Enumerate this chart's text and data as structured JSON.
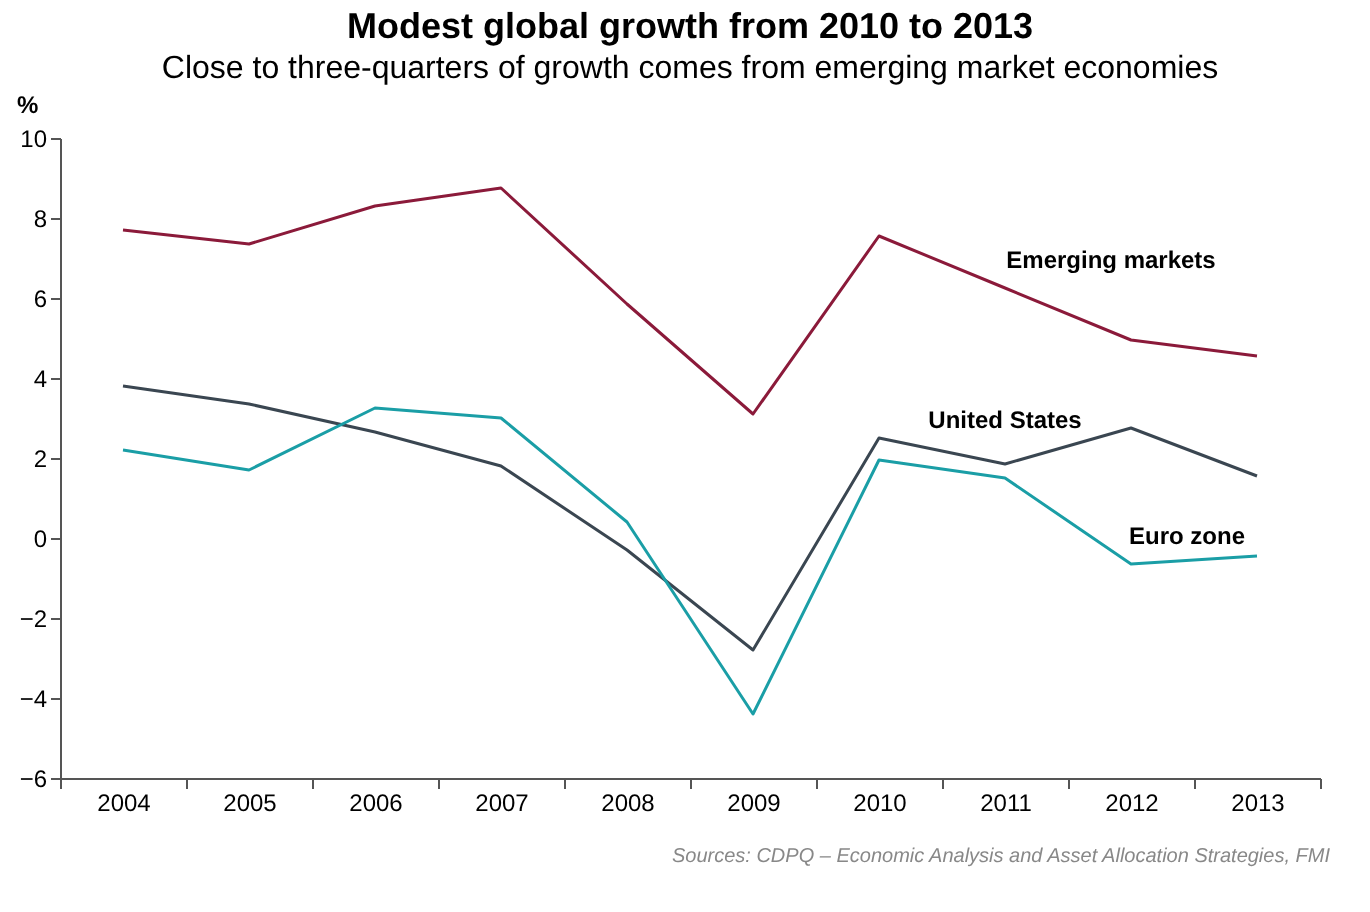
{
  "chart_data": {
    "type": "line",
    "title": "Modest global growth from 2010 to 2013",
    "subtitle": "Close to three-quarters of growth comes from emerging market economies",
    "ylabel": "%",
    "categories": [
      "2004",
      "2005",
      "2006",
      "2007",
      "2008",
      "2009",
      "2010",
      "2011",
      "2012",
      "2013"
    ],
    "series": [
      {
        "name": "Emerging markets",
        "color": "#8b1a3a",
        "values": [
          7.7,
          7.35,
          8.3,
          8.75,
          5.85,
          3.1,
          7.55,
          6.25,
          4.95,
          4.55
        ]
      },
      {
        "name": "United States",
        "color": "#3a4651",
        "values": [
          3.8,
          3.35,
          2.65,
          1.8,
          -0.3,
          -2.8,
          2.5,
          1.85,
          2.75,
          1.55
        ]
      },
      {
        "name": "Euro zone",
        "color": "#1a9ea6",
        "values": [
          2.2,
          1.7,
          3.25,
          3.0,
          0.4,
          -4.4,
          1.95,
          1.5,
          -0.65,
          -0.45
        ]
      }
    ],
    "ylim": [
      -6,
      10
    ],
    "yticks": [
      -6,
      -4,
      -2,
      0,
      2,
      4,
      6,
      8,
      10
    ],
    "grid": false,
    "legend": false,
    "marker": "none",
    "line_style": "solid",
    "annotations": [
      "Sources: CDPQ – Economic Analysis and Asset Allocation Strategies, FMI"
    ]
  }
}
